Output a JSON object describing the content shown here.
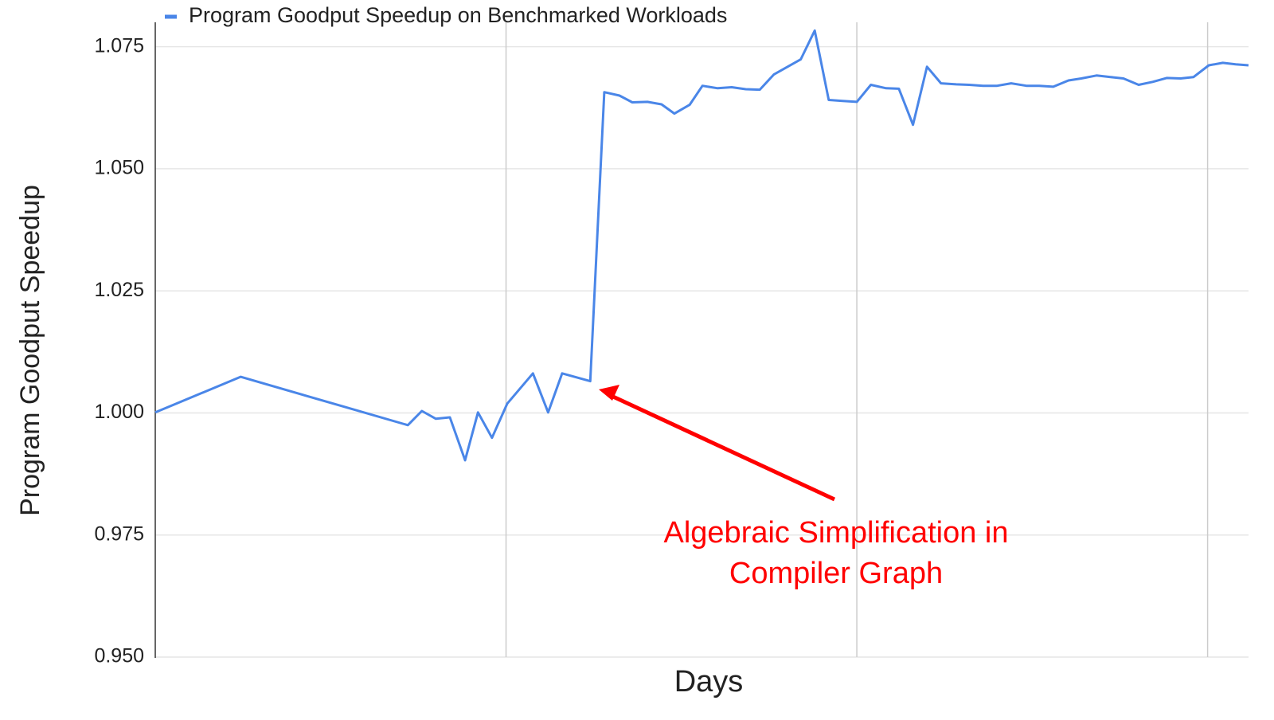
{
  "chart_data": {
    "type": "line",
    "title": null,
    "x_label": "Days",
    "y_label": "Program Goodput Speedup",
    "legend": "top-left",
    "grid": true,
    "xlim": [
      0,
      93.5
    ],
    "xticks": [
      30,
      60,
      90
    ],
    "ylim": [
      0.95,
      1.08
    ],
    "yticks": [
      {
        "value": 0.95,
        "label": "0.950"
      },
      0.975,
      {
        "value": 1,
        "label": "1.000"
      },
      1.025,
      {
        "value": 1.05,
        "label": "1.050"
      },
      1.075
    ],
    "x": [
      0,
      7.3,
      21.6,
      22.8,
      24.0,
      25.2,
      26.5,
      27.6,
      28.8,
      30.1,
      32.3,
      33.6,
      34.8,
      37.2,
      38.4,
      39.7,
      40.8,
      42.1,
      43.3,
      44.4,
      45.7,
      46.8,
      48.1,
      49.3,
      50.5,
      51.7,
      52.9,
      55.2,
      56.4,
      57.6,
      58.8,
      60.0,
      61.2,
      62.5,
      63.6,
      64.8,
      66.0,
      67.2,
      68.5,
      69.6,
      70.8,
      72.0,
      73.2,
      74.5,
      75.6,
      76.8,
      78.1,
      79.2,
      80.5,
      81.7,
      82.8,
      84.1,
      85.3,
      86.5,
      87.7,
      88.8,
      90.1,
      91.3,
      92.4,
      93.5
    ],
    "series": [
      {
        "name": "Program Goodput Speedup on Benchmarked Workloads",
        "color": "#4a86e8",
        "values": [
          1.0001,
          1.0074,
          0.9975,
          1.0004,
          0.9988,
          0.9991,
          0.9903,
          1.0001,
          0.9949,
          1.0019,
          1.0081,
          1.0001,
          1.0081,
          1.0065,
          1.0657,
          1.065,
          1.0636,
          1.0637,
          1.0632,
          1.0613,
          1.0631,
          1.067,
          1.0665,
          1.0667,
          1.0663,
          1.0662,
          1.0693,
          1.0724,
          1.0783,
          1.0641,
          1.0639,
          1.0637,
          1.0672,
          1.0665,
          1.0664,
          1.059,
          1.0709,
          1.0675,
          1.0673,
          1.0672,
          1.067,
          1.067,
          1.0675,
          1.067,
          1.067,
          1.0668,
          1.0681,
          1.0685,
          1.0691,
          1.0688,
          1.0685,
          1.0672,
          1.0678,
          1.0686,
          1.0685,
          1.0688,
          1.0712,
          1.0717,
          1.0714,
          1.0712
        ]
      }
    ],
    "annotation": {
      "lines": [
        "Algebraic Simplification in",
        "Compiler Graph"
      ],
      "color": "#ff0000"
    }
  }
}
